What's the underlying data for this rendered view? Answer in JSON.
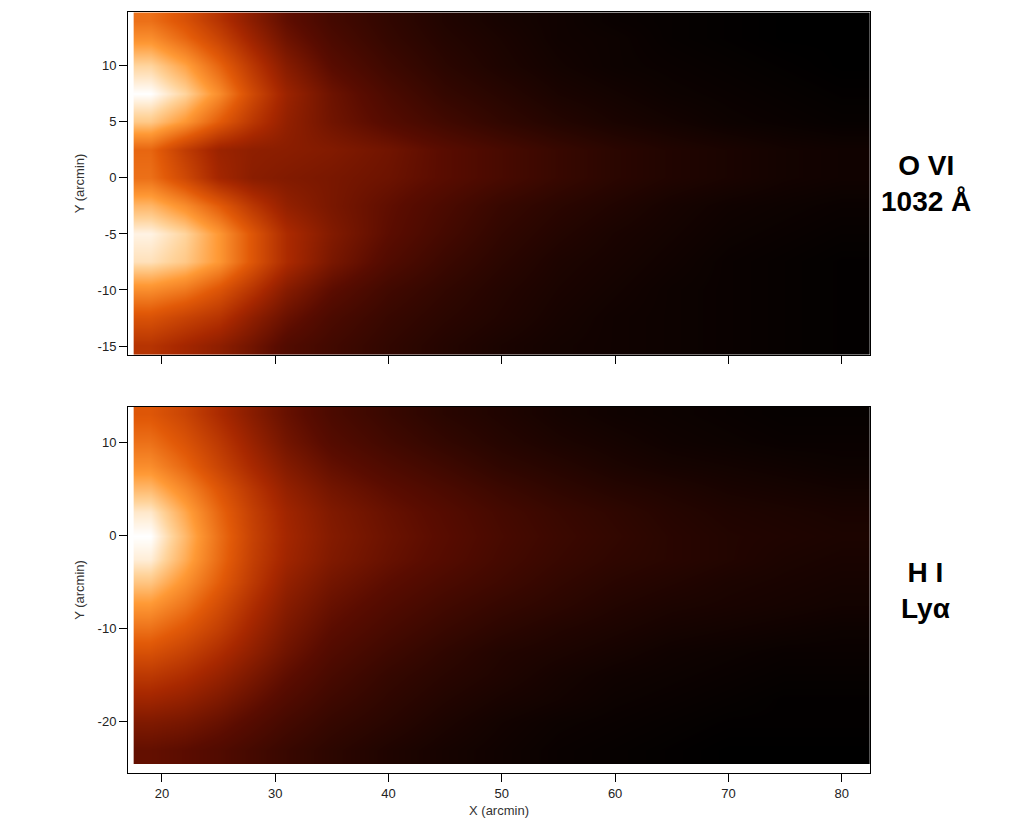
{
  "chart_data": [
    {
      "type": "heatmap",
      "label": [
        "O VI",
        "1032 Å"
      ],
      "ylabel": "Y (arcmin)",
      "tick_labels": "y",
      "x": [
        19,
        22,
        25,
        28,
        31,
        35,
        40,
        45,
        50,
        55,
        60,
        65,
        70,
        75,
        80
      ],
      "y": [
        -15,
        -12.5,
        -10,
        -7.5,
        -5,
        -2.5,
        0,
        2.5,
        5,
        7.5,
        10,
        12.5,
        14
      ],
      "cells": [
        [
          0.55,
          0.5,
          0.45,
          0.38,
          0.3,
          0.25,
          0.2,
          0.16,
          0.13,
          0.11,
          0.1,
          0.09,
          0.08,
          0.07,
          0.06
        ],
        [
          0.65,
          0.6,
          0.55,
          0.45,
          0.36,
          0.28,
          0.22,
          0.18,
          0.15,
          0.12,
          0.1,
          0.09,
          0.08,
          0.07,
          0.06
        ],
        [
          0.78,
          0.74,
          0.66,
          0.55,
          0.43,
          0.33,
          0.25,
          0.2,
          0.16,
          0.13,
          0.11,
          0.09,
          0.08,
          0.07,
          0.06
        ],
        [
          0.92,
          0.88,
          0.8,
          0.66,
          0.52,
          0.4,
          0.3,
          0.23,
          0.18,
          0.14,
          0.12,
          0.1,
          0.08,
          0.07,
          0.06
        ],
        [
          0.95,
          0.9,
          0.8,
          0.66,
          0.52,
          0.42,
          0.33,
          0.26,
          0.2,
          0.16,
          0.13,
          0.11,
          0.09,
          0.08,
          0.07
        ],
        [
          0.85,
          0.78,
          0.68,
          0.56,
          0.46,
          0.4,
          0.34,
          0.28,
          0.22,
          0.18,
          0.15,
          0.12,
          0.1,
          0.09,
          0.08
        ],
        [
          0.72,
          0.62,
          0.5,
          0.44,
          0.42,
          0.4,
          0.37,
          0.32,
          0.27,
          0.22,
          0.18,
          0.15,
          0.13,
          0.11,
          0.1
        ],
        [
          0.7,
          0.58,
          0.48,
          0.45,
          0.44,
          0.42,
          0.38,
          0.32,
          0.27,
          0.22,
          0.18,
          0.15,
          0.13,
          0.11,
          0.1
        ],
        [
          0.88,
          0.8,
          0.68,
          0.56,
          0.46,
          0.38,
          0.31,
          0.25,
          0.2,
          0.16,
          0.13,
          0.11,
          0.09,
          0.08,
          0.07
        ],
        [
          0.97,
          0.9,
          0.78,
          0.62,
          0.48,
          0.37,
          0.28,
          0.21,
          0.17,
          0.13,
          0.11,
          0.09,
          0.08,
          0.07,
          0.06
        ],
        [
          0.9,
          0.82,
          0.7,
          0.56,
          0.43,
          0.32,
          0.24,
          0.18,
          0.14,
          0.11,
          0.09,
          0.08,
          0.07,
          0.06,
          0.05
        ],
        [
          0.78,
          0.7,
          0.6,
          0.48,
          0.37,
          0.28,
          0.21,
          0.16,
          0.13,
          0.1,
          0.09,
          0.07,
          0.06,
          0.05,
          0.05
        ],
        [
          0.72,
          0.65,
          0.55,
          0.44,
          0.34,
          0.26,
          0.2,
          0.15,
          0.12,
          0.1,
          0.08,
          0.07,
          0.06,
          0.05,
          0.05
        ]
      ],
      "xlim": [
        17,
        82.5
      ],
      "xticks": [
        20,
        30,
        40,
        50,
        60,
        70,
        80
      ],
      "ylim": [
        -15.8,
        14.8
      ],
      "yticks": [
        -15,
        -10,
        -5,
        0,
        5,
        10
      ]
    },
    {
      "type": "heatmap",
      "label": [
        "H I",
        "Lyα"
      ],
      "xlabel": "X (arcmin)",
      "ylabel": "Y (arcmin)",
      "x": [
        19,
        22,
        25,
        28,
        31,
        35,
        40,
        45,
        50,
        55,
        60,
        65,
        70,
        75,
        80
      ],
      "y": [
        -23,
        -20,
        -17.5,
        -15,
        -12.5,
        -10,
        -7.5,
        -5,
        -2.5,
        0,
        2.5,
        5,
        7.5,
        10,
        13
      ],
      "cells": [
        [
          0.35,
          0.33,
          0.3,
          0.26,
          0.22,
          0.18,
          0.14,
          0.11,
          0.09,
          0.07,
          0.06,
          0.05,
          0.04,
          0.04,
          0.04
        ],
        [
          0.42,
          0.4,
          0.36,
          0.31,
          0.26,
          0.21,
          0.17,
          0.13,
          0.1,
          0.08,
          0.07,
          0.06,
          0.05,
          0.05,
          0.05
        ],
        [
          0.5,
          0.47,
          0.42,
          0.36,
          0.3,
          0.24,
          0.19,
          0.15,
          0.12,
          0.1,
          0.08,
          0.07,
          0.06,
          0.05,
          0.05
        ],
        [
          0.58,
          0.54,
          0.48,
          0.41,
          0.34,
          0.27,
          0.21,
          0.17,
          0.14,
          0.11,
          0.09,
          0.08,
          0.07,
          0.06,
          0.06
        ],
        [
          0.66,
          0.61,
          0.54,
          0.46,
          0.38,
          0.3,
          0.24,
          0.19,
          0.15,
          0.13,
          0.11,
          0.09,
          0.08,
          0.07,
          0.07
        ],
        [
          0.74,
          0.68,
          0.6,
          0.5,
          0.41,
          0.33,
          0.27,
          0.22,
          0.18,
          0.15,
          0.13,
          0.11,
          0.1,
          0.09,
          0.08
        ],
        [
          0.82,
          0.75,
          0.65,
          0.54,
          0.44,
          0.36,
          0.3,
          0.25,
          0.21,
          0.18,
          0.15,
          0.13,
          0.12,
          0.11,
          0.1
        ],
        [
          0.9,
          0.81,
          0.7,
          0.58,
          0.47,
          0.39,
          0.33,
          0.28,
          0.24,
          0.2,
          0.17,
          0.15,
          0.13,
          0.12,
          0.11
        ],
        [
          0.97,
          0.86,
          0.73,
          0.6,
          0.5,
          0.42,
          0.36,
          0.31,
          0.26,
          0.22,
          0.19,
          0.17,
          0.15,
          0.13,
          0.12
        ],
        [
          1.0,
          0.88,
          0.74,
          0.61,
          0.51,
          0.43,
          0.37,
          0.32,
          0.27,
          0.23,
          0.2,
          0.17,
          0.15,
          0.14,
          0.13
        ],
        [
          0.96,
          0.85,
          0.72,
          0.6,
          0.5,
          0.42,
          0.36,
          0.31,
          0.26,
          0.22,
          0.19,
          0.16,
          0.14,
          0.13,
          0.12
        ],
        [
          0.88,
          0.79,
          0.68,
          0.57,
          0.47,
          0.39,
          0.33,
          0.28,
          0.23,
          0.19,
          0.16,
          0.14,
          0.12,
          0.11,
          0.1
        ],
        [
          0.8,
          0.72,
          0.62,
          0.52,
          0.43,
          0.35,
          0.29,
          0.24,
          0.19,
          0.16,
          0.13,
          0.11,
          0.1,
          0.09,
          0.08
        ],
        [
          0.74,
          0.67,
          0.58,
          0.48,
          0.39,
          0.31,
          0.25,
          0.2,
          0.16,
          0.13,
          0.11,
          0.09,
          0.08,
          0.07,
          0.07
        ],
        [
          0.68,
          0.62,
          0.53,
          0.44,
          0.36,
          0.28,
          0.22,
          0.17,
          0.14,
          0.11,
          0.09,
          0.08,
          0.07,
          0.06,
          0.06
        ]
      ],
      "xlim": [
        17,
        82.5
      ],
      "xticks": [
        20,
        30,
        40,
        50,
        60,
        70,
        80
      ],
      "ylim": [
        -25.5,
        13.8
      ],
      "yticks": [
        -20,
        -10,
        0,
        10
      ]
    }
  ]
}
